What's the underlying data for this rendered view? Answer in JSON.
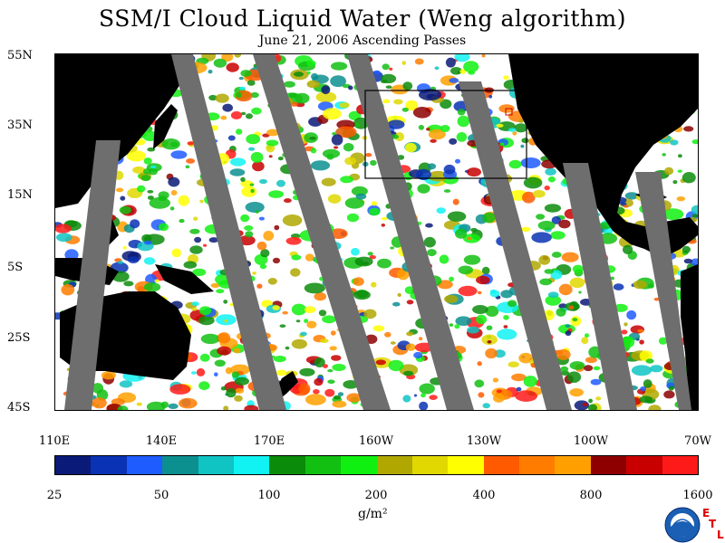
{
  "title": "SSM/I Cloud Liquid Water (Weng algorithm)",
  "subtitle": "June 21, 2006  Ascending Passes",
  "map": {
    "lat_labels": [
      "55N",
      "35N",
      "15N",
      "5S",
      "25S",
      "45S"
    ],
    "lon_labels": [
      "110E",
      "140E",
      "170E",
      "160W",
      "130W",
      "100W",
      "70W"
    ],
    "colors": {
      "land": "#000000",
      "swath_gap": "#6e6e6e",
      "no_cloud": "#ffffff",
      "box": "#000000",
      "marker": "#cc0000"
    }
  },
  "colorbar": {
    "colors": [
      "#0a1a78",
      "#0a32b4",
      "#1f5cff",
      "#0c8f8f",
      "#10c4c4",
      "#11f2f2",
      "#0a8c0a",
      "#12c012",
      "#10f010",
      "#b0a800",
      "#e0d800",
      "#ffff00",
      "#ff5a00",
      "#ff7c00",
      "#ffa000",
      "#8e0000",
      "#c80000",
      "#ff1a1a"
    ],
    "tick_labels": [
      "25",
      "50",
      "100",
      "200",
      "400",
      "800",
      "1600"
    ],
    "units": "g/m²"
  },
  "logo": {
    "name": "NOAA",
    "letters": [
      "E",
      "T",
      "L"
    ]
  }
}
